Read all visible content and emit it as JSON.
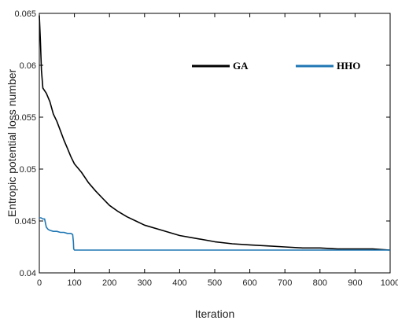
{
  "chart_data": {
    "type": "line",
    "title": "",
    "xlabel": "Iteration",
    "ylabel": "Entropic potential loss number",
    "xlim": [
      0,
      1000
    ],
    "ylim": [
      0.04,
      0.065
    ],
    "xticks": [
      0,
      100,
      200,
      300,
      400,
      500,
      600,
      700,
      800,
      900,
      1000
    ],
    "yticks": [
      0.04,
      0.045,
      0.05,
      0.055,
      0.06,
      0.065
    ],
    "ytick_labels": [
      "0.04",
      "0.045",
      "0.05",
      "0.055",
      "0.06",
      "0.065"
    ],
    "grid": false,
    "legend_position": "top-right",
    "series": [
      {
        "name": "GA",
        "color": "#000000",
        "x": [
          0,
          3,
          6,
          10,
          20,
          30,
          40,
          50,
          60,
          70,
          80,
          90,
          100,
          120,
          140,
          160,
          180,
          200,
          225,
          250,
          275,
          300,
          350,
          400,
          450,
          500,
          550,
          600,
          650,
          700,
          750,
          800,
          850,
          900,
          950,
          1000
        ],
        "y": [
          0.0648,
          0.0625,
          0.0595,
          0.0578,
          0.0573,
          0.0565,
          0.0553,
          0.0546,
          0.0537,
          0.0528,
          0.052,
          0.0512,
          0.0505,
          0.0497,
          0.0487,
          0.0479,
          0.0472,
          0.0465,
          0.0459,
          0.0454,
          0.045,
          0.0446,
          0.0441,
          0.0436,
          0.0433,
          0.043,
          0.0428,
          0.0427,
          0.0426,
          0.0425,
          0.0424,
          0.0424,
          0.0423,
          0.0423,
          0.0423,
          0.0422
        ]
      },
      {
        "name": "HHO",
        "color": "#1f77b4",
        "x": [
          0,
          5,
          10,
          15,
          20,
          25,
          30,
          40,
          50,
          60,
          70,
          80,
          90,
          95,
          97,
          98,
          100,
          150,
          200,
          300,
          400,
          500,
          600,
          700,
          800,
          900,
          1000
        ],
        "y": [
          0.0453,
          0.0453,
          0.0452,
          0.0452,
          0.0444,
          0.0442,
          0.0441,
          0.044,
          0.044,
          0.0439,
          0.0439,
          0.0438,
          0.0438,
          0.0437,
          0.043,
          0.0423,
          0.0422,
          0.0422,
          0.0422,
          0.0422,
          0.0422,
          0.0422,
          0.0422,
          0.0422,
          0.0422,
          0.0422,
          0.0422
        ]
      }
    ]
  }
}
